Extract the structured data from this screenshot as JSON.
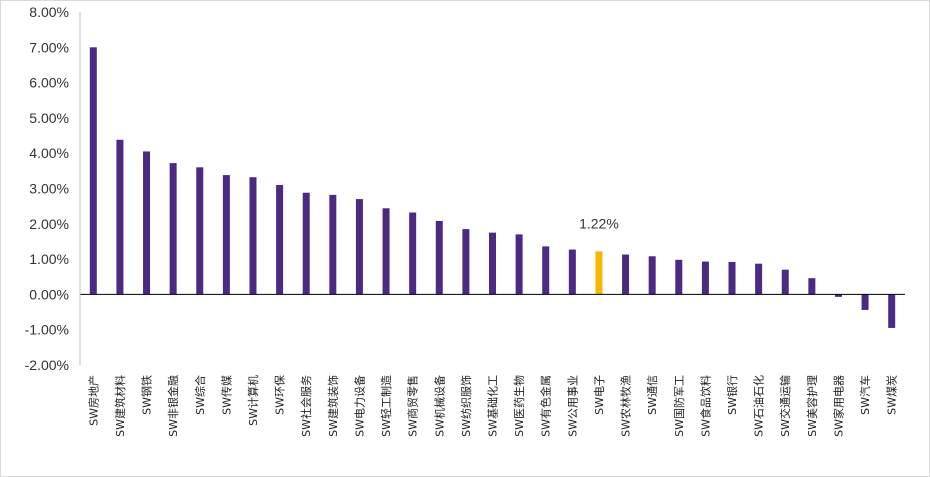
{
  "chart_data": {
    "type": "bar",
    "title": "",
    "xlabel": "",
    "ylabel": "",
    "ylim": [
      -2.0,
      8.0
    ],
    "yticks": [
      "-2.00%",
      "-1.00%",
      "0.00%",
      "1.00%",
      "2.00%",
      "3.00%",
      "4.00%",
      "5.00%",
      "6.00%",
      "7.00%",
      "8.00%"
    ],
    "grid": false,
    "legend": "none",
    "colors": {
      "bar": "#4b2a83",
      "highlight": "#f5b800",
      "axis": "#000000"
    },
    "highlight_category": "SW电子",
    "data_label": "1.22%",
    "categories": [
      "SW房地产",
      "SW建筑材料",
      "SW钢铁",
      "SW非银金融",
      "SW综合",
      "SW传媒",
      "SW计算机",
      "SW环保",
      "SW社会服务",
      "SW建筑装饰",
      "SW电力设备",
      "SW轻工制造",
      "SW商贸零售",
      "SW机械设备",
      "SW纺织服饰",
      "SW基础化工",
      "SW医药生物",
      "SW有色金属",
      "SW公用事业",
      "SW电子",
      "SW农林牧渔",
      "SW通信",
      "SW国防军工",
      "SW食品饮料",
      "SW银行",
      "SW石油石化",
      "SW交通运输",
      "SW美容护理",
      "SW家用电器",
      "SW汽车",
      "SW煤炭"
    ],
    "values": [
      7.0,
      4.38,
      4.05,
      3.72,
      3.6,
      3.38,
      3.32,
      3.1,
      2.88,
      2.82,
      2.7,
      2.44,
      2.32,
      2.08,
      1.85,
      1.75,
      1.7,
      1.36,
      1.27,
      1.22,
      1.13,
      1.08,
      0.98,
      0.93,
      0.92,
      0.87,
      0.7,
      0.46,
      -0.07,
      -0.44,
      -0.95
    ]
  }
}
